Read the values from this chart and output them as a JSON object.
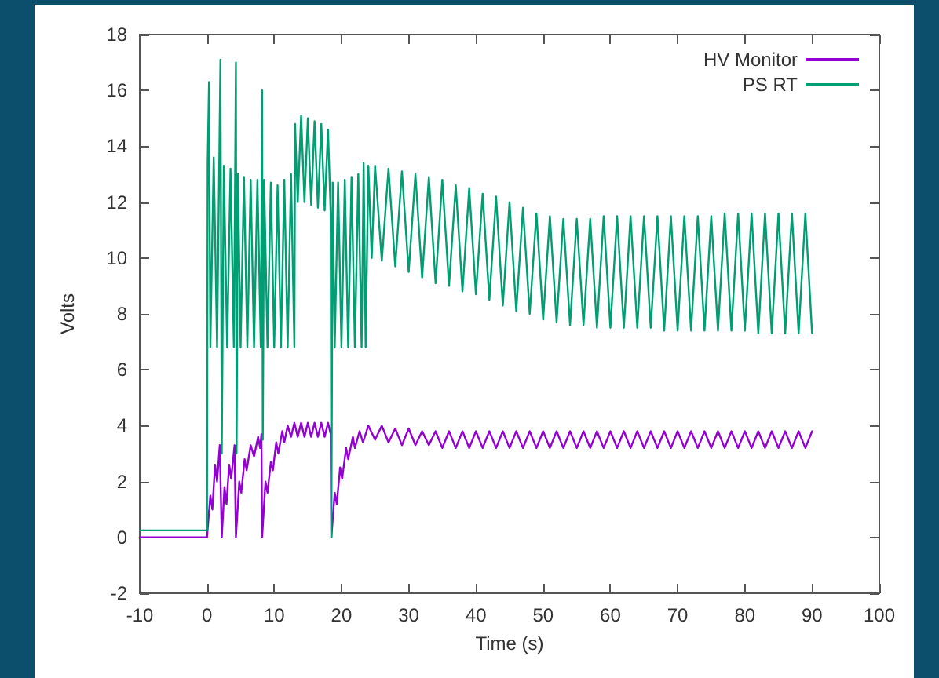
{
  "chart_data": {
    "type": "line",
    "xlabel": "Time (s)",
    "ylabel": "Volts",
    "xlim": [
      -10,
      100
    ],
    "ylim": [
      -2,
      18
    ],
    "xticks": [
      -10,
      0,
      10,
      20,
      30,
      40,
      50,
      60,
      70,
      80,
      90,
      100
    ],
    "yticks": [
      -2,
      0,
      2,
      4,
      6,
      8,
      10,
      12,
      14,
      16,
      18
    ],
    "grid": false,
    "legend": "top right",
    "marker": "none",
    "line_style": "solid",
    "series": [
      {
        "name": "HV Monitor",
        "color": "#9400d3",
        "x": [
          -10,
          0,
          0.5,
          0.8,
          1.2,
          1.5,
          1.9,
          2.2,
          2.6,
          2.9,
          3.3,
          3.6,
          4.1,
          4.3,
          4.8,
          5.1,
          5.6,
          5.9,
          6.5,
          7,
          7.6,
          7.9,
          8.1,
          8.2,
          8.7,
          9,
          9.5,
          9.8,
          10.3,
          10.6,
          11.2,
          11.5,
          12,
          12.5,
          13,
          13.5,
          14,
          14.5,
          15,
          15.5,
          16,
          16.5,
          17,
          17.5,
          18,
          18.4,
          18.5,
          19,
          19.3,
          19.8,
          20.1,
          20.7,
          21,
          21.7,
          22,
          22.7,
          23.2,
          24,
          25,
          26,
          27,
          28,
          29,
          30,
          31,
          32,
          33,
          34,
          35,
          36,
          37,
          38,
          39,
          40,
          41,
          42,
          43,
          44,
          45,
          46,
          47,
          48,
          49,
          50,
          51,
          52,
          53,
          54,
          55,
          56,
          57,
          58,
          59,
          60,
          61,
          62,
          63,
          64,
          65,
          66,
          67,
          68,
          69,
          70,
          71,
          72,
          73,
          74,
          75,
          76,
          77,
          78,
          79,
          80,
          81,
          82,
          83,
          84,
          85,
          86,
          87,
          88,
          89,
          90
        ],
        "values": [
          0,
          0,
          1.5,
          1.0,
          2.6,
          2.0,
          3.3,
          0,
          1.8,
          1.2,
          2.6,
          2.1,
          3.3,
          0,
          2.0,
          1.6,
          2.8,
          2.4,
          3.3,
          2.9,
          3.6,
          3.2,
          3.7,
          0,
          2.0,
          1.6,
          2.7,
          2.4,
          3.4,
          3.0,
          3.8,
          3.4,
          4.0,
          3.6,
          4.1,
          3.6,
          4.1,
          3.6,
          4.1,
          3.6,
          4.1,
          3.6,
          4.1,
          3.6,
          4.1,
          3.7,
          0,
          1.6,
          1.2,
          2.5,
          2.1,
          3.2,
          2.8,
          3.6,
          3.2,
          3.8,
          3.4,
          4.0,
          3.5,
          4.0,
          3.4,
          3.9,
          3.3,
          3.9,
          3.3,
          3.8,
          3.3,
          3.8,
          3.2,
          3.8,
          3.2,
          3.8,
          3.2,
          3.8,
          3.2,
          3.8,
          3.2,
          3.8,
          3.2,
          3.8,
          3.2,
          3.8,
          3.2,
          3.8,
          3.2,
          3.8,
          3.2,
          3.8,
          3.2,
          3.8,
          3.2,
          3.8,
          3.2,
          3.8,
          3.2,
          3.8,
          3.2,
          3.8,
          3.2,
          3.8,
          3.2,
          3.8,
          3.2,
          3.8,
          3.2,
          3.8,
          3.2,
          3.8,
          3.2,
          3.8,
          3.2,
          3.8,
          3.2,
          3.8,
          3.2,
          3.8,
          3.2,
          3.8,
          3.2,
          3.8,
          3.2,
          3.8,
          3.2,
          3.8
        ]
      },
      {
        "name": "PS RT",
        "color": "#009e73",
        "x": [
          -10,
          0,
          0.1,
          0.3,
          0.5,
          1,
          1.5,
          2,
          2.2,
          2.5,
          3,
          3.5,
          4,
          4.3,
          4.4,
          4.6,
          5,
          5.5,
          6,
          6.5,
          7,
          7.5,
          8,
          8.2,
          8.3,
          8.5,
          9,
          9.5,
          10,
          10.5,
          11,
          11.5,
          12,
          12.5,
          13,
          13.1,
          13.5,
          14,
          14.5,
          15,
          15.5,
          16,
          16.5,
          17,
          17.5,
          18,
          18.4,
          18.5,
          18.7,
          19,
          19.5,
          20,
          20.5,
          21,
          21.5,
          22,
          22.5,
          23,
          23.3,
          23.6,
          24,
          24.5,
          25,
          26,
          27,
          28,
          29,
          30,
          31,
          32,
          33,
          34,
          35,
          36,
          37,
          38,
          39,
          40,
          41,
          42,
          43,
          44,
          45,
          46,
          47,
          48,
          49,
          50,
          51,
          52,
          53,
          54,
          55,
          56,
          57,
          58,
          59,
          60,
          61,
          62,
          63,
          64,
          65,
          66,
          67,
          68,
          69,
          70,
          71,
          72,
          73,
          74,
          75,
          76,
          77,
          78,
          79,
          80,
          81,
          82,
          83,
          84,
          85,
          86,
          87,
          88,
          89,
          90
        ],
        "values": [
          0.25,
          0.25,
          13.4,
          16.3,
          6.8,
          13.6,
          6.8,
          17.1,
          3.0,
          13.3,
          6.8,
          13.2,
          6.8,
          17.0,
          3.0,
          13.0,
          6.8,
          12.9,
          6.8,
          12.8,
          6.8,
          12.8,
          6.8,
          16.0,
          3.5,
          12.8,
          6.8,
          12.7,
          6.8,
          12.6,
          6.8,
          12.8,
          6.8,
          13.0,
          6.8,
          14.8,
          12.0,
          15.1,
          12.0,
          15.0,
          11.9,
          14.9,
          11.8,
          14.8,
          11.7,
          14.6,
          11.6,
          0,
          12.7,
          6.8,
          12.7,
          6.8,
          12.8,
          6.8,
          12.9,
          6.8,
          13.0,
          6.8,
          13.4,
          6.8,
          13.3,
          10.0,
          13.3,
          9.9,
          13.2,
          9.7,
          13.1,
          9.5,
          13.0,
          9.3,
          12.9,
          9.1,
          12.8,
          9.0,
          12.6,
          8.8,
          12.5,
          8.7,
          12.3,
          8.5,
          12.2,
          8.3,
          12.0,
          8.1,
          11.8,
          8.0,
          11.6,
          7.8,
          11.5,
          7.7,
          11.4,
          7.6,
          11.4,
          7.6,
          11.4,
          7.5,
          11.5,
          7.5,
          11.5,
          7.5,
          11.5,
          7.5,
          11.5,
          7.5,
          11.5,
          7.4,
          11.5,
          7.4,
          11.5,
          7.4,
          11.5,
          7.4,
          11.5,
          7.4,
          11.6,
          7.4,
          11.6,
          7.4,
          11.6,
          7.3,
          11.6,
          7.3,
          11.6,
          7.3,
          11.6,
          7.3,
          11.6,
          7.3
        ]
      }
    ]
  }
}
